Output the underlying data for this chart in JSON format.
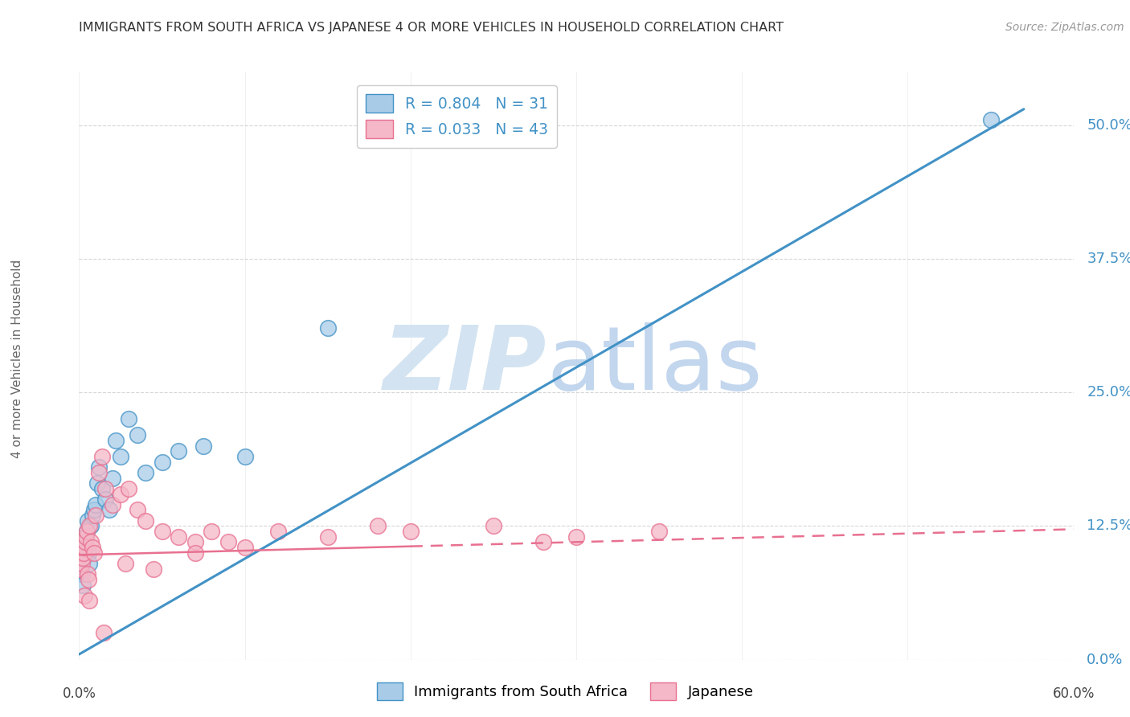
{
  "title": "IMMIGRANTS FROM SOUTH AFRICA VS JAPANESE 4 OR MORE VEHICLES IN HOUSEHOLD CORRELATION CHART",
  "source": "Source: ZipAtlas.com",
  "ylabel": "4 or more Vehicles in Household",
  "ytick_values": [
    0.0,
    12.5,
    25.0,
    37.5,
    50.0
  ],
  "xlim": [
    0.0,
    60.0
  ],
  "ylim": [
    0.0,
    55.0
  ],
  "legend_label1": "R = 0.804   N = 31",
  "legend_label2": "R = 0.033   N = 43",
  "legend_label1_short": "Immigrants from South Africa",
  "legend_label2_short": "Japanese",
  "blue_scatter_color": "#a8cce8",
  "pink_scatter_color": "#f4b8c8",
  "blue_line_color": "#4292c6",
  "pink_line_color": "#e87090",
  "blue_line_x": [
    0.0,
    57.0
  ],
  "blue_line_y": [
    0.5,
    51.5
  ],
  "pink_line_x": [
    0.0,
    60.0
  ],
  "pink_line_y": [
    9.8,
    12.2
  ],
  "pink_line_dash": [
    6,
    4
  ],
  "blue_scatter_x": [
    0.15,
    0.2,
    0.25,
    0.3,
    0.35,
    0.4,
    0.45,
    0.5,
    0.55,
    0.6,
    0.7,
    0.8,
    0.9,
    1.0,
    1.1,
    1.2,
    1.4,
    1.6,
    1.8,
    2.0,
    2.2,
    2.5,
    3.0,
    3.5,
    4.0,
    5.0,
    6.0,
    7.5,
    10.0,
    15.0,
    55.0
  ],
  "blue_scatter_y": [
    8.0,
    7.0,
    9.5,
    10.5,
    11.0,
    11.5,
    12.0,
    13.0,
    10.0,
    9.0,
    12.5,
    13.5,
    14.0,
    14.5,
    16.5,
    18.0,
    16.0,
    15.0,
    14.0,
    17.0,
    20.5,
    19.0,
    22.5,
    21.0,
    17.5,
    18.5,
    19.5,
    20.0,
    19.0,
    31.0,
    50.5
  ],
  "pink_scatter_x": [
    0.1,
    0.15,
    0.2,
    0.25,
    0.3,
    0.35,
    0.4,
    0.45,
    0.5,
    0.55,
    0.6,
    0.7,
    0.8,
    0.9,
    1.0,
    1.2,
    1.4,
    1.6,
    2.0,
    2.5,
    3.0,
    3.5,
    4.0,
    5.0,
    6.0,
    7.0,
    8.0,
    9.0,
    10.0,
    12.0,
    15.0,
    18.0,
    20.0,
    25.0,
    28.0,
    30.0,
    35.0,
    0.3,
    0.6,
    1.5,
    2.8,
    4.5,
    7.0
  ],
  "pink_scatter_y": [
    8.5,
    9.0,
    9.5,
    10.0,
    10.5,
    11.0,
    11.5,
    12.0,
    8.0,
    7.5,
    12.5,
    11.0,
    10.5,
    10.0,
    13.5,
    17.5,
    19.0,
    16.0,
    14.5,
    15.5,
    16.0,
    14.0,
    13.0,
    12.0,
    11.5,
    11.0,
    12.0,
    11.0,
    10.5,
    12.0,
    11.5,
    12.5,
    12.0,
    12.5,
    11.0,
    11.5,
    12.0,
    6.0,
    5.5,
    2.5,
    9.0,
    8.5,
    10.0
  ],
  "grid_color": "#cccccc",
  "bg_color": "#ffffff",
  "watermark_zip_color": "#cfe0f0",
  "watermark_atlas_color": "#b8cfeb"
}
